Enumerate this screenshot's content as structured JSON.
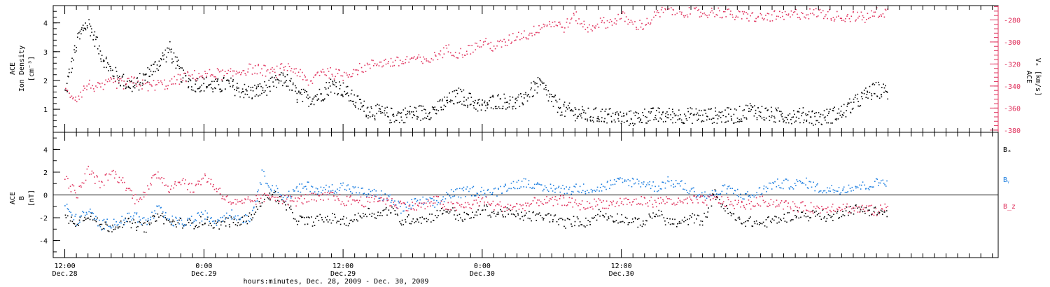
{
  "chart_data": [
    {
      "type": "scatter",
      "panel": "top",
      "left_axis": {
        "label_line1": "ACE",
        "label_line2": "Ion Density",
        "unit": "[cm⁻³]",
        "ylim": [
          0.2,
          4.6
        ],
        "ticks": [
          1,
          2,
          3,
          4
        ],
        "color": "#000000"
      },
      "right_axis": {
        "label_line1": "ACE",
        "label_line2": "Vₓ [km/s]",
        "ylim": [
          -382,
          -267
        ],
        "ticks": [
          -380,
          -360,
          -340,
          -320,
          -300,
          -280
        ],
        "color": "#e0335e"
      },
      "series": [
        {
          "color": "#000000",
          "axis": "left",
          "x": [
            0,
            0.5,
            1,
            1.5,
            2,
            3,
            4,
            5,
            6,
            7,
            8,
            9,
            10,
            11,
            12,
            13,
            14,
            15,
            16,
            17,
            18,
            19,
            20,
            21,
            22,
            23,
            24,
            25,
            26,
            27,
            28,
            29,
            30,
            31,
            32,
            33,
            34,
            35,
            36,
            37,
            38,
            39,
            40,
            41,
            42,
            43,
            44,
            45,
            46,
            47,
            48,
            49,
            50,
            51,
            52,
            53,
            54,
            55,
            56,
            57,
            58,
            59,
            60,
            61,
            62,
            63,
            64,
            65,
            66,
            67,
            68,
            69,
            70,
            71
          ],
          "values": [
            1.6,
            2.5,
            3.3,
            3.8,
            4.0,
            3.0,
            2.3,
            2.0,
            1.8,
            2.2,
            2.6,
            3.1,
            2.2,
            1.9,
            1.9,
            1.8,
            1.9,
            1.7,
            1.6,
            1.7,
            1.9,
            2.1,
            1.5,
            1.4,
            1.5,
            1.9,
            1.7,
            1.3,
            1.0,
            0.9,
            0.8,
            0.8,
            0.9,
            0.9,
            1.0,
            1.3,
            1.5,
            1.3,
            1.1,
            1.3,
            1.3,
            1.2,
            1.6,
            1.9,
            1.3,
            1.0,
            0.9,
            0.8,
            0.8,
            0.8,
            0.7,
            0.7,
            0.8,
            0.8,
            0.8,
            0.8,
            0.8,
            0.8,
            0.8,
            0.8,
            0.8,
            1.0,
            0.9,
            0.8,
            0.8,
            0.8,
            0.8,
            0.7,
            0.8,
            0.9,
            1.2,
            1.5,
            1.7,
            1.6
          ]
        },
        {
          "color": "#e0335e",
          "axis": "right",
          "x": [
            0,
            1,
            2,
            3,
            4,
            5,
            6,
            7,
            8,
            9,
            10,
            11,
            12,
            13,
            14,
            15,
            16,
            17,
            18,
            19,
            20,
            21,
            22,
            23,
            24,
            25,
            26,
            27,
            28,
            29,
            30,
            31,
            32,
            33,
            34,
            35,
            36,
            37,
            38,
            39,
            40,
            41,
            42,
            43,
            44,
            45,
            46,
            47,
            48,
            49,
            50,
            51,
            52,
            53,
            54,
            55,
            56,
            57,
            58,
            59,
            60,
            61,
            62,
            63,
            64,
            65,
            66,
            67,
            68,
            69,
            70,
            71
          ],
          "values": [
            -345,
            -350,
            -338,
            -342,
            -336,
            -338,
            -335,
            -340,
            -338,
            -338,
            -332,
            -330,
            -330,
            -328,
            -330,
            -326,
            -324,
            -325,
            -328,
            -322,
            -326,
            -338,
            -325,
            -328,
            -330,
            -325,
            -322,
            -318,
            -318,
            -318,
            -314,
            -318,
            -312,
            -306,
            -310,
            -306,
            -300,
            -304,
            -300,
            -293,
            -293,
            -285,
            -282,
            -286,
            -276,
            -288,
            -282,
            -282,
            -276,
            -284,
            -284,
            -275,
            -270,
            -272,
            -272,
            -274,
            -272,
            -274,
            -276,
            -276,
            -278,
            -276,
            -277,
            -274,
            -274,
            -273,
            -275,
            -277,
            -276,
            -278,
            -273,
            -272
          ]
        }
      ]
    },
    {
      "type": "scatter",
      "panel": "bottom",
      "left_axis": {
        "label_line1": "ACE",
        "label_line2": "B",
        "unit": "[nT]",
        "ylim": [
          -5.5,
          5.5
        ],
        "ticks": [
          -4,
          -2,
          0,
          2,
          4
        ],
        "color": "#000000"
      },
      "series": [
        {
          "name": "Bₓ",
          "color": "#000000",
          "x": [
            0,
            1,
            2,
            3,
            4,
            5,
            6,
            7,
            8,
            9,
            10,
            11,
            12,
            13,
            14,
            15,
            16,
            17,
            18,
            19,
            20,
            21,
            22,
            23,
            24,
            25,
            26,
            27,
            28,
            29,
            30,
            31,
            32,
            33,
            34,
            35,
            36,
            37,
            38,
            39,
            40,
            41,
            42,
            43,
            44,
            45,
            46,
            47,
            48,
            49,
            50,
            51,
            52,
            53,
            54,
            55,
            56,
            57,
            58,
            59,
            60,
            61,
            62,
            63,
            64,
            65,
            66,
            67,
            68,
            69,
            70,
            71
          ],
          "values": [
            -2.0,
            -2.3,
            -1.6,
            -2.6,
            -2.8,
            -2.3,
            -2.6,
            -2.8,
            -1.7,
            -2.4,
            -2.4,
            -2.5,
            -2.2,
            -2.6,
            -2.3,
            -2.4,
            -1.9,
            -0.4,
            0.1,
            -0.9,
            -2.1,
            -2.3,
            -2.1,
            -2.0,
            -2.3,
            -2.1,
            -1.4,
            -1.7,
            -1.2,
            -2.3,
            -2.0,
            -2.1,
            -1.7,
            -1.2,
            -1.9,
            -1.9,
            -1.1,
            -1.6,
            -1.5,
            -1.8,
            -1.8,
            -1.9,
            -1.9,
            -2.5,
            -2.2,
            -2.4,
            -1.6,
            -1.9,
            -2.0,
            -2.4,
            -2.3,
            -1.5,
            -2.3,
            -2.5,
            -2.0,
            -2.2,
            0.2,
            -1.3,
            -2.2,
            -2.3,
            -2.5,
            -2.2,
            -2.0,
            -1.6,
            -1.8,
            -1.6,
            -2.0,
            -1.4,
            -1.2,
            -1.3,
            -1.4,
            -1.6
          ]
        },
        {
          "name": "Bᵧ",
          "color": "#1e7fe0",
          "x": [
            0,
            1,
            2,
            3,
            4,
            5,
            6,
            7,
            8,
            9,
            10,
            11,
            12,
            13,
            14,
            15,
            16,
            17,
            18,
            19,
            20,
            21,
            22,
            23,
            24,
            25,
            26,
            27,
            28,
            29,
            30,
            31,
            32,
            33,
            34,
            35,
            36,
            37,
            38,
            39,
            40,
            41,
            42,
            43,
            44,
            45,
            46,
            47,
            48,
            49,
            50,
            51,
            52,
            53,
            54,
            55,
            56,
            57,
            58,
            59,
            60,
            61,
            62,
            63,
            64,
            65,
            66,
            67,
            68,
            69,
            70,
            71
          ],
          "values": [
            -1.0,
            -2.2,
            -1.4,
            -2.6,
            -2.4,
            -2.2,
            -1.7,
            -2.4,
            -1.2,
            -2.2,
            -2.4,
            -2.2,
            -1.7,
            -2.3,
            -1.5,
            -2.0,
            -1.9,
            1.8,
            0.6,
            -0.2,
            0.5,
            0.8,
            0.4,
            0.6,
            0.8,
            0.4,
            0.2,
            0.1,
            -0.3,
            -1.2,
            -0.7,
            -0.5,
            -0.8,
            0.1,
            0.2,
            0.4,
            0.4,
            0.2,
            0.8,
            1.0,
            1.2,
            0.5,
            0.7,
            0.5,
            0.6,
            0.6,
            0.6,
            1.0,
            1.2,
            1.2,
            1.1,
            0.7,
            1.2,
            1.0,
            0.4,
            0.0,
            0.1,
            0.6,
            0.2,
            -0.1,
            0.4,
            1.0,
            1.0,
            1.0,
            1.1,
            0.6,
            0.5,
            0.6,
            0.8,
            0.8,
            1.1,
            1.3
          ]
        },
        {
          "name": "B_z",
          "color": "#e0335e",
          "x": [
            0,
            1,
            2,
            3,
            4,
            5,
            6,
            7,
            8,
            9,
            10,
            11,
            12,
            13,
            14,
            15,
            16,
            17,
            18,
            19,
            20,
            21,
            22,
            23,
            24,
            25,
            26,
            27,
            28,
            29,
            30,
            31,
            32,
            33,
            34,
            35,
            36,
            37,
            38,
            39,
            40,
            41,
            42,
            43,
            44,
            45,
            46,
            47,
            48,
            49,
            50,
            51,
            52,
            53,
            54,
            55,
            56,
            57,
            58,
            59,
            60,
            61,
            62,
            63,
            64,
            65,
            66,
            67,
            68,
            69,
            70,
            71
          ],
          "values": [
            1.5,
            0.0,
            2.2,
            1.0,
            2.0,
            1.2,
            -0.3,
            0.3,
            2.0,
            0.6,
            1.4,
            0.5,
            1.7,
            0.7,
            -0.4,
            -0.8,
            -0.5,
            -0.3,
            0.0,
            -0.4,
            -0.5,
            -0.2,
            -0.3,
            0.0,
            -0.5,
            -0.4,
            -0.6,
            -0.2,
            -0.6,
            -0.8,
            -1.0,
            -0.9,
            -0.4,
            -1.0,
            -1.0,
            -0.8,
            -0.4,
            -0.9,
            -1.0,
            -1.0,
            -0.8,
            -0.4,
            -0.6,
            -0.4,
            -0.8,
            -0.9,
            -0.6,
            -0.8,
            -0.5,
            -0.6,
            -0.5,
            -0.6,
            -0.4,
            -0.7,
            -0.4,
            -0.5,
            -0.3,
            -0.6,
            -0.8,
            -0.8,
            -0.5,
            -0.6,
            -0.8,
            -1.0,
            -1.0,
            -1.2,
            -1.0,
            -1.0,
            -1.2,
            -1.2,
            -1.4,
            -1.0
          ]
        }
      ]
    }
  ],
  "x_axis": {
    "label": "hours:minutes, Dec. 28, 2009 - Dec. 30, 2009",
    "xlim": [
      -1,
      80.5
    ],
    "gridline_dates": [
      "Dec.28 12:00",
      "Dec.29 00:00",
      "Dec.29 12:00",
      "Dec.30 00:00",
      "Dec.30 12:00"
    ],
    "major_ticks": [
      {
        "x": 0,
        "time": "12:00",
        "date": "Dec.28"
      },
      {
        "x": 12,
        "time": "0:00",
        "date": "Dec.29"
      },
      {
        "x": 24,
        "time": "12:00",
        "date": "Dec.29"
      },
      {
        "x": 36,
        "time": "0:00",
        "date": "Dec.30"
      },
      {
        "x": 48,
        "time": "12:00",
        "date": "Dec.30"
      }
    ]
  }
}
